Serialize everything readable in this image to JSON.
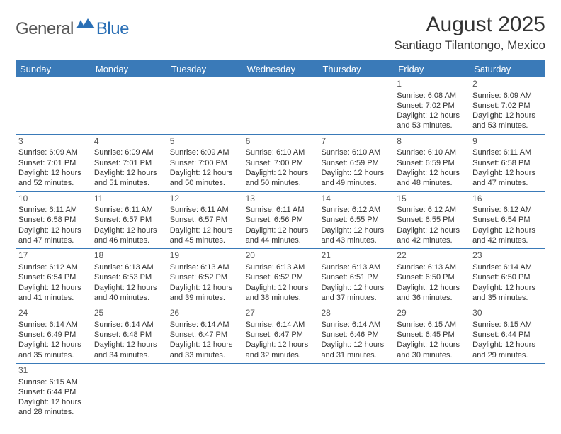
{
  "logo": {
    "general": "General",
    "blue": "Blue"
  },
  "title": "August 2025",
  "location": "Santiago Tilantongo, Mexico",
  "day_headers": [
    "Sunday",
    "Monday",
    "Tuesday",
    "Wednesday",
    "Thursday",
    "Friday",
    "Saturday"
  ],
  "colors": {
    "header_bg": "#3a7ab8",
    "header_text": "#ffffff",
    "rule": "#3a7ab8",
    "text": "#333333",
    "logo_gray": "#555555",
    "logo_blue": "#2a6fb5"
  },
  "weeks": [
    [
      null,
      null,
      null,
      null,
      null,
      {
        "n": "1",
        "sr": "6:08 AM",
        "ss": "7:02 PM",
        "dh": "12",
        "dm": "53"
      },
      {
        "n": "2",
        "sr": "6:09 AM",
        "ss": "7:02 PM",
        "dh": "12",
        "dm": "53"
      }
    ],
    [
      {
        "n": "3",
        "sr": "6:09 AM",
        "ss": "7:01 PM",
        "dh": "12",
        "dm": "52"
      },
      {
        "n": "4",
        "sr": "6:09 AM",
        "ss": "7:01 PM",
        "dh": "12",
        "dm": "51"
      },
      {
        "n": "5",
        "sr": "6:09 AM",
        "ss": "7:00 PM",
        "dh": "12",
        "dm": "50"
      },
      {
        "n": "6",
        "sr": "6:10 AM",
        "ss": "7:00 PM",
        "dh": "12",
        "dm": "50"
      },
      {
        "n": "7",
        "sr": "6:10 AM",
        "ss": "6:59 PM",
        "dh": "12",
        "dm": "49"
      },
      {
        "n": "8",
        "sr": "6:10 AM",
        "ss": "6:59 PM",
        "dh": "12",
        "dm": "48"
      },
      {
        "n": "9",
        "sr": "6:11 AM",
        "ss": "6:58 PM",
        "dh": "12",
        "dm": "47"
      }
    ],
    [
      {
        "n": "10",
        "sr": "6:11 AM",
        "ss": "6:58 PM",
        "dh": "12",
        "dm": "47"
      },
      {
        "n": "11",
        "sr": "6:11 AM",
        "ss": "6:57 PM",
        "dh": "12",
        "dm": "46"
      },
      {
        "n": "12",
        "sr": "6:11 AM",
        "ss": "6:57 PM",
        "dh": "12",
        "dm": "45"
      },
      {
        "n": "13",
        "sr": "6:11 AM",
        "ss": "6:56 PM",
        "dh": "12",
        "dm": "44"
      },
      {
        "n": "14",
        "sr": "6:12 AM",
        "ss": "6:55 PM",
        "dh": "12",
        "dm": "43"
      },
      {
        "n": "15",
        "sr": "6:12 AM",
        "ss": "6:55 PM",
        "dh": "12",
        "dm": "42"
      },
      {
        "n": "16",
        "sr": "6:12 AM",
        "ss": "6:54 PM",
        "dh": "12",
        "dm": "42"
      }
    ],
    [
      {
        "n": "17",
        "sr": "6:12 AM",
        "ss": "6:54 PM",
        "dh": "12",
        "dm": "41"
      },
      {
        "n": "18",
        "sr": "6:13 AM",
        "ss": "6:53 PM",
        "dh": "12",
        "dm": "40"
      },
      {
        "n": "19",
        "sr": "6:13 AM",
        "ss": "6:52 PM",
        "dh": "12",
        "dm": "39"
      },
      {
        "n": "20",
        "sr": "6:13 AM",
        "ss": "6:52 PM",
        "dh": "12",
        "dm": "38"
      },
      {
        "n": "21",
        "sr": "6:13 AM",
        "ss": "6:51 PM",
        "dh": "12",
        "dm": "37"
      },
      {
        "n": "22",
        "sr": "6:13 AM",
        "ss": "6:50 PM",
        "dh": "12",
        "dm": "36"
      },
      {
        "n": "23",
        "sr": "6:14 AM",
        "ss": "6:50 PM",
        "dh": "12",
        "dm": "35"
      }
    ],
    [
      {
        "n": "24",
        "sr": "6:14 AM",
        "ss": "6:49 PM",
        "dh": "12",
        "dm": "35"
      },
      {
        "n": "25",
        "sr": "6:14 AM",
        "ss": "6:48 PM",
        "dh": "12",
        "dm": "34"
      },
      {
        "n": "26",
        "sr": "6:14 AM",
        "ss": "6:47 PM",
        "dh": "12",
        "dm": "33"
      },
      {
        "n": "27",
        "sr": "6:14 AM",
        "ss": "6:47 PM",
        "dh": "12",
        "dm": "32"
      },
      {
        "n": "28",
        "sr": "6:14 AM",
        "ss": "6:46 PM",
        "dh": "12",
        "dm": "31"
      },
      {
        "n": "29",
        "sr": "6:15 AM",
        "ss": "6:45 PM",
        "dh": "12",
        "dm": "30"
      },
      {
        "n": "30",
        "sr": "6:15 AM",
        "ss": "6:44 PM",
        "dh": "12",
        "dm": "29"
      }
    ],
    [
      {
        "n": "31",
        "sr": "6:15 AM",
        "ss": "6:44 PM",
        "dh": "12",
        "dm": "28"
      },
      null,
      null,
      null,
      null,
      null,
      null
    ]
  ],
  "labels": {
    "sunrise": "Sunrise:",
    "sunset": "Sunset:",
    "daylight_prefix": "Daylight:",
    "hours_word": "hours",
    "and_word": "and",
    "minutes_word": "minutes."
  }
}
